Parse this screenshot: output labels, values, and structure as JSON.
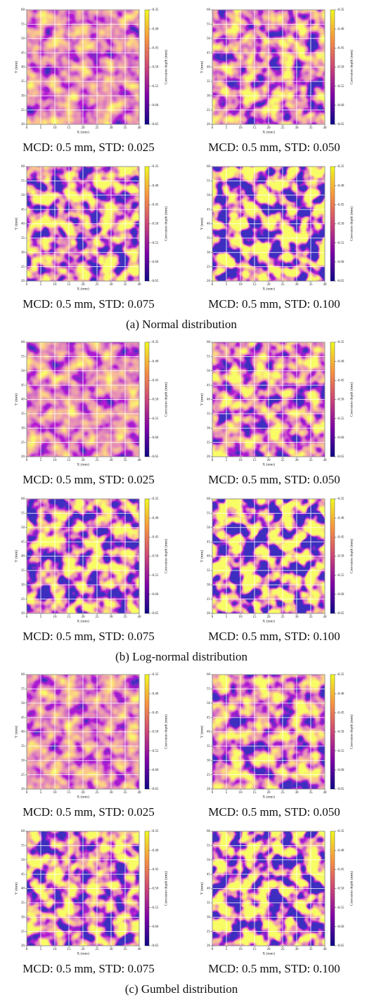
{
  "axes": {
    "xlabel": "X (mm)",
    "ylabel": "Y (mm)",
    "xlim": [
      0,
      40
    ],
    "xticks": [
      0,
      5,
      10,
      15,
      20,
      25,
      30,
      35,
      40
    ],
    "ylim": [
      20,
      60
    ],
    "yticks": [
      20,
      25,
      30,
      35,
      40,
      45,
      50,
      55,
      60
    ],
    "colorbar": {
      "label": "Corrosion depth (mm)",
      "lim": [
        -0.65,
        -0.35
      ],
      "ticks": [
        {
          "value": -0.35,
          "label": "-0.35"
        },
        {
          "value": -0.4,
          "label": "-0.40"
        },
        {
          "value": -0.45,
          "label": "-0.45"
        },
        {
          "value": -0.5,
          "label": "-0.50"
        },
        {
          "value": -0.55,
          "label": "-0.55"
        },
        {
          "value": -0.6,
          "label": "-0.60"
        },
        {
          "value": -0.65,
          "label": "-0.65"
        }
      ]
    }
  },
  "groups": [
    {
      "caption": "(a) Normal distribution",
      "panels": [
        {
          "caption": "MCD: 0.5 mm, STD: 0.025"
        },
        {
          "caption": "MCD: 0.5 mm, STD: 0.050"
        },
        {
          "caption": "MCD: 0.5 mm, STD: 0.075"
        },
        {
          "caption": "MCD: 0.5 mm, STD: 0.100"
        }
      ]
    },
    {
      "caption": "(b) Log-normal distribution",
      "panels": [
        {
          "caption": "MCD: 0.5 mm, STD: 0.025"
        },
        {
          "caption": "MCD: 0.5 mm, STD: 0.050"
        },
        {
          "caption": "MCD: 0.5 mm, STD: 0.075"
        },
        {
          "caption": "MCD: 0.5 mm, STD: 0.100"
        }
      ]
    },
    {
      "caption": "(c) Gumbel distribution",
      "panels": [
        {
          "caption": "MCD: 0.5 mm, STD: 0.025"
        },
        {
          "caption": "MCD: 0.5 mm, STD: 0.050"
        },
        {
          "caption": "MCD: 0.5 mm, STD: 0.075"
        },
        {
          "caption": "MCD: 0.5 mm, STD: 0.100"
        }
      ]
    }
  ]
}
